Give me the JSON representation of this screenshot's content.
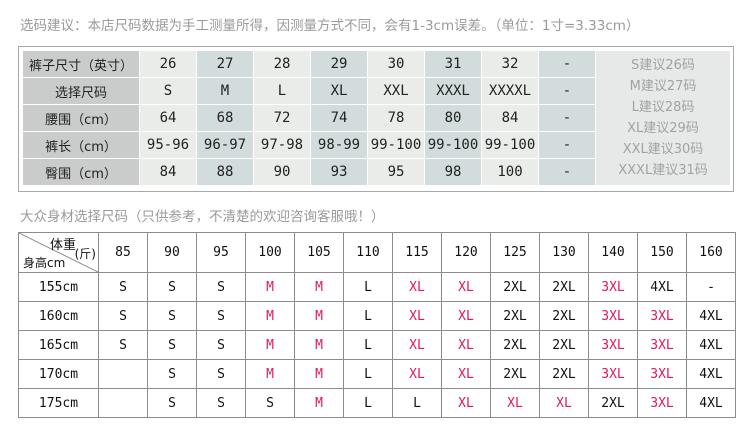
{
  "notes": {
    "top": "选码建议：本店尺码数据为手工测量所得，因测量方式不同，会有1-3cm误差。（单位：1寸=3.33cm）",
    "bottom": "大众身材选择尺码（只供参考，不清楚的欢迎咨询客服哦！）"
  },
  "size_table": {
    "rows": [
      {
        "label": "裤子尺寸（英寸）",
        "values": [
          "26",
          "27",
          "28",
          "29",
          "30",
          "31",
          "32",
          "-"
        ]
      },
      {
        "label": "选择尺码",
        "values": [
          "S",
          "M",
          "L",
          "XL",
          "XXL",
          "XXXL",
          "XXXXL",
          "-"
        ]
      },
      {
        "label": "腰围（cm）",
        "values": [
          "64",
          "68",
          "72",
          "74",
          "78",
          "80",
          "84",
          "-"
        ]
      },
      {
        "label": "裤长（cm）",
        "values": [
          "95-96",
          "96-97",
          "97-98",
          "98-99",
          "99-100",
          "99-100",
          "99-100",
          "-"
        ]
      },
      {
        "label": "臀围（cm）",
        "values": [
          "84",
          "88",
          "90",
          "93",
          "95",
          "98",
          "100",
          "-"
        ]
      }
    ],
    "suggestions": [
      "S建议26码",
      "M建议27码",
      "L建议28码",
      "XL建议29码",
      "XXL建议30码",
      "XXXL建议31码"
    ]
  },
  "body_table": {
    "corner": {
      "weight": "体重",
      "unit": "(斤)",
      "height": "身高cm"
    },
    "weights": [
      "85",
      "90",
      "95",
      "100",
      "105",
      "110",
      "115",
      "120",
      "125",
      "130",
      "140",
      "150",
      "160"
    ],
    "highlight_color": "#e0185a",
    "rows": [
      {
        "height": "155cm",
        "sizes": [
          "S",
          "S",
          "S",
          "M",
          "M",
          "L",
          "XL",
          "XL",
          "2XL",
          "2XL",
          "3XL",
          "4XL",
          "-"
        ]
      },
      {
        "height": "160cm",
        "sizes": [
          "S",
          "S",
          "S",
          "M",
          "M",
          "L",
          "XL",
          "XL",
          "2XL",
          "2XL",
          "3XL",
          "3XL",
          "4XL"
        ]
      },
      {
        "height": "165cm",
        "sizes": [
          "S",
          "S",
          "S",
          "M",
          "M",
          "L",
          "XL",
          "XL",
          "2XL",
          "2XL",
          "3XL",
          "3XL",
          "4XL"
        ]
      },
      {
        "height": "170cm",
        "sizes": [
          "",
          "S",
          "S",
          "M",
          "M",
          "L",
          "XL",
          "XL",
          "2XL",
          "2XL",
          "3XL",
          "3XL",
          "4XL"
        ]
      },
      {
        "height": "175cm",
        "sizes": [
          "",
          "S",
          "S",
          "S",
          "M",
          "L",
          "L",
          "XL",
          "XL",
          "XL",
          "2XL",
          "3XL",
          "4XL"
        ]
      }
    ],
    "red_cells": [
      [
        3,
        4,
        6,
        7,
        10
      ],
      [
        3,
        4,
        6,
        7,
        10,
        11
      ],
      [
        3,
        4,
        6,
        7,
        10,
        11
      ],
      [
        3,
        4,
        6,
        7,
        10,
        11
      ],
      [
        4,
        7,
        8,
        9,
        11
      ]
    ]
  }
}
